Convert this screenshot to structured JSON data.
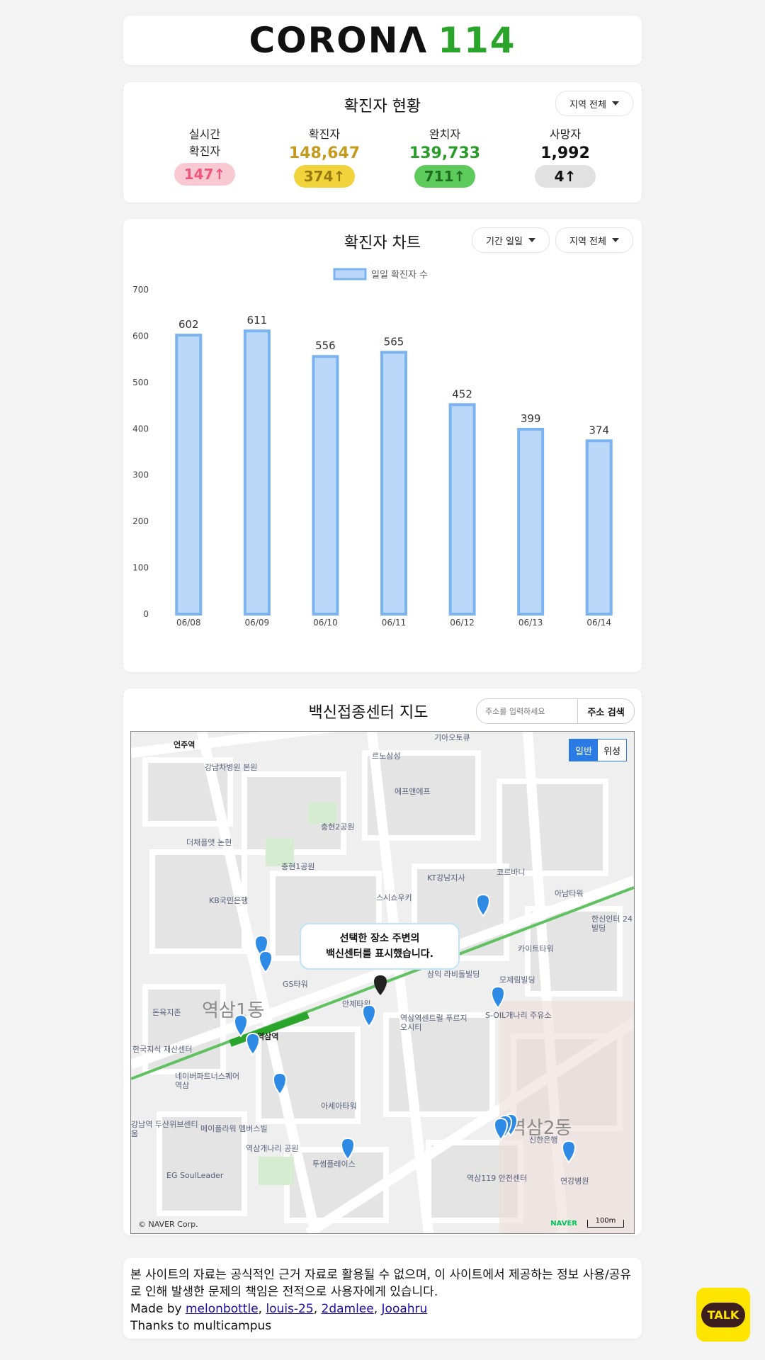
{
  "header": {
    "logo_word": "CORONΛ",
    "logo_num": "114"
  },
  "status": {
    "title": "확진자 현황",
    "region_select": "지역 전체",
    "items": [
      {
        "label1": "실시간",
        "label2": "확진자",
        "value": "",
        "delta": "147↑",
        "color": "#f0557a",
        "badge_bg": "#f8c9d3"
      },
      {
        "label1": "확진자",
        "label2": "",
        "value": "148,647",
        "delta": "374↑",
        "color": "#c59b1e",
        "badge_bg": "#f2d33b"
      },
      {
        "label1": "완치자",
        "label2": "",
        "value": "139,733",
        "delta": "711↑",
        "color": "#2a9c2a",
        "badge_bg": "#5ccb5c"
      },
      {
        "label1": "사망자",
        "label2": "",
        "value": "1,992",
        "delta": "4↑",
        "color": "#111111",
        "badge_bg": "#e1e1e1"
      }
    ]
  },
  "chart": {
    "title": "확진자 차트",
    "period_select": "기간 일일",
    "region_select": "지역 전체"
  },
  "chart_data": {
    "type": "bar",
    "categories": [
      "06/08",
      "06/09",
      "06/10",
      "06/11",
      "06/12",
      "06/13",
      "06/14"
    ],
    "series": [
      {
        "name": "일일 확진자 수",
        "values": [
          602,
          611,
          556,
          565,
          452,
          399,
          374
        ]
      }
    ],
    "yticks": [
      0,
      100,
      200,
      300,
      400,
      500,
      600,
      700
    ],
    "ylim": [
      0,
      700
    ],
    "legend": "top-center",
    "bar_fill": "#bcd8f8",
    "bar_stroke": "#7ab3ef"
  },
  "map_section": {
    "title": "백신접종센터 지도",
    "search_placeholder": "주소를 입력하세요",
    "search_button": "주소 검색",
    "toggle_normal": "일반",
    "toggle_satellite": "위성",
    "tooltip_line1": "선택한 장소 주변의",
    "tooltip_line2": "백신센터를 표시했습니다.",
    "credit": "© NAVER Corp.",
    "naver": "NAVER",
    "scale": "100m",
    "labels": [
      "언주역",
      "강남차병원 본원",
      "르노삼성",
      "기아오토큐",
      "에프앤에프",
      "충현2공원",
      "더채플앳 논현",
      "충현1공원",
      "KT강남지사",
      "코르바니",
      "KB국민은행",
      "스시쇼우키",
      "아남타워",
      "한신인터 24빌딩",
      "카이트타워",
      "삼익 라비돌빌딩",
      "모제림빌딩",
      "GS타워",
      "역삼1동",
      "역삼역",
      "안제타워",
      "역삼역센트럴 푸르지오시티",
      "S-OIL개나리 주유소",
      "돈육지존",
      "한국지식 재산센터",
      "네이버파트너스퀘어 역삼",
      "아세아타워",
      "강남역 두산위브센티움",
      "메이플라워 멤버스빌",
      "역삼개나리 공원",
      "투썸플레이스",
      "역삼2동",
      "신한은행",
      "역삼119 안전센터",
      "연강병원",
      "EG SoulLeader"
    ]
  },
  "footer": {
    "notice": "본 사이트의 자료는 공식적인 근거 자료로 활용될 수 없으며, 이 사이트에서 제공하는 정보 사용/공유로 인해 발생한 문제의 책임은 전적으로 사용자에게 있습니다.",
    "made_by": "Made by",
    "authors": [
      "melonbottle",
      "louis-25",
      "2damlee",
      "Jooahru"
    ],
    "thanks": "Thanks to multicampus"
  },
  "kakao": {
    "label": "TALK"
  }
}
